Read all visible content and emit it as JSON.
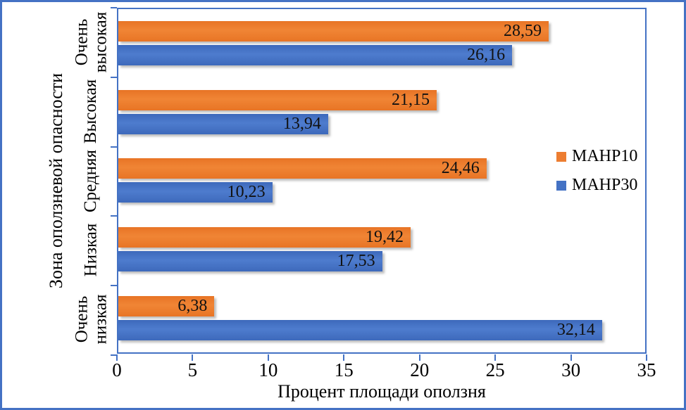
{
  "figure": {
    "background": "#FFFFFF",
    "border_color": "#4472C4",
    "axis_color": "#4472C4",
    "text_color": "#000000"
  },
  "chart_data": {
    "type": "bar",
    "orientation": "horizontal",
    "title": "",
    "xlabel": "Процент площади оползня",
    "ylabel": "Зона оползневой опасности",
    "xlim": [
      0,
      35
    ],
    "xtick_values": [
      0,
      5,
      10,
      15,
      20,
      25,
      30,
      35
    ],
    "xtick_labels": [
      "0",
      "5",
      "10",
      "15",
      "20",
      "25",
      "30",
      "35"
    ],
    "grid": false,
    "categories": [
      "Очень\nвысокая",
      "Высокая",
      "Средняя",
      "Низкая",
      "Очень\nнизкая"
    ],
    "series": [
      {
        "name": "MAHP10",
        "color": "#ED7D31",
        "values": [
          28.59,
          21.15,
          24.46,
          19.42,
          6.38
        ],
        "value_labels": [
          "28,59",
          "21,15",
          "24,46",
          "19,42",
          "6,38"
        ]
      },
      {
        "name": "MAHP30",
        "color": "#4472C4",
        "values": [
          26.16,
          13.94,
          10.23,
          17.53,
          32.14
        ],
        "value_labels": [
          "26,16",
          "13,94",
          "10,23",
          "17,53",
          "32,14"
        ]
      }
    ],
    "legend": {
      "position": "inside-right",
      "items": [
        "MAHP10",
        "MAHP30"
      ]
    }
  }
}
